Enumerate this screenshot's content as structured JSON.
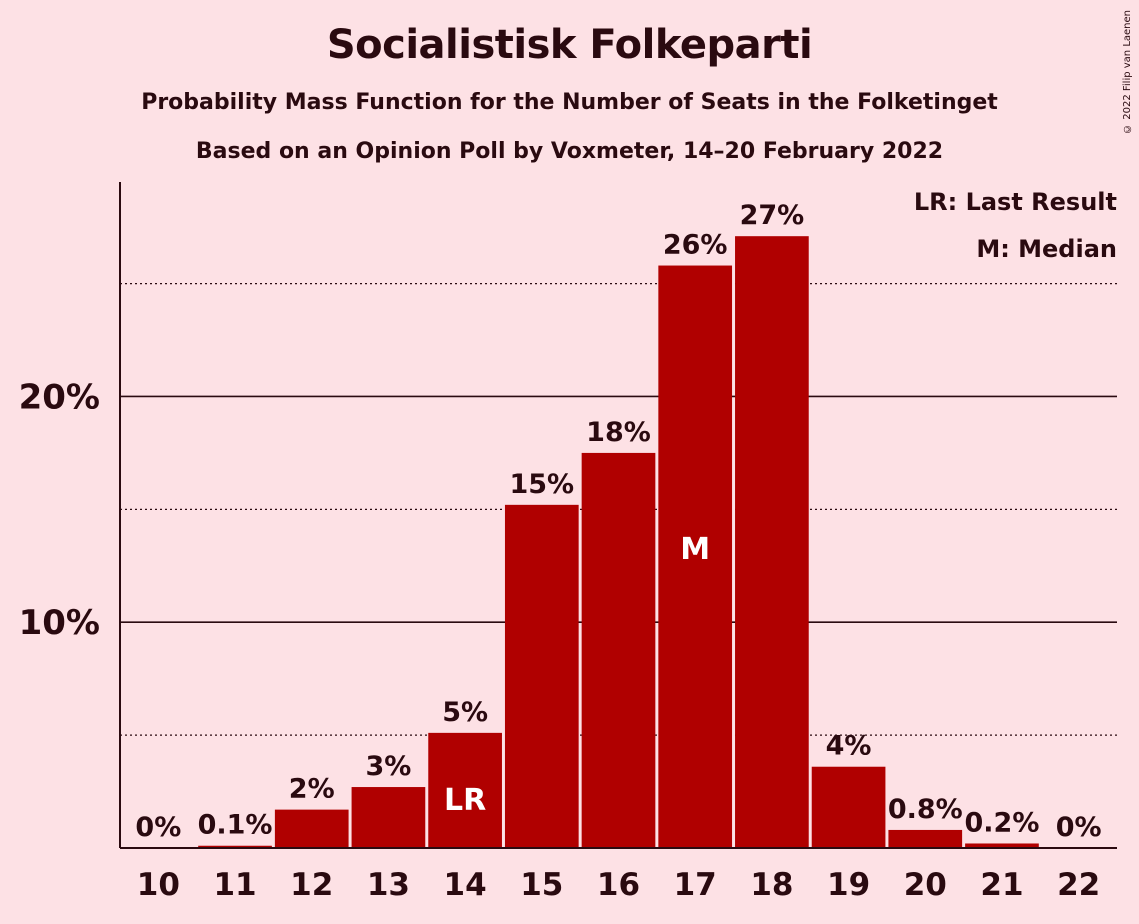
{
  "header": {
    "title": "Socialistisk Folkeparti",
    "subtitle_1": "Probability Mass Function for the Number of Seats in the Folketinget",
    "subtitle_2": "Based on an Opinion Poll by Voxmeter, 14–20 February 2022",
    "copyright": "© 2022 Filip van Laenen"
  },
  "legend": {
    "last_result": "LR: Last Result",
    "median": "M: Median"
  },
  "colors": {
    "background": "#FDE1E5",
    "bar": "#B00000",
    "text": "#2a0a10"
  },
  "chart_data": {
    "type": "bar",
    "title": "Socialistisk Folkeparti",
    "categories": [
      "10",
      "11",
      "12",
      "13",
      "14",
      "15",
      "16",
      "17",
      "18",
      "19",
      "20",
      "21",
      "22"
    ],
    "values": [
      0,
      0.1,
      1.7,
      2.7,
      5.1,
      15.2,
      17.5,
      25.8,
      27.1,
      3.6,
      0.8,
      0.2,
      0
    ],
    "data_labels": [
      "0%",
      "0.1%",
      "2%",
      "3%",
      "5%",
      "15%",
      "18%",
      "26%",
      "27%",
      "4%",
      "0.8%",
      "0.2%",
      "0%"
    ],
    "ylim": [
      0,
      29.5
    ],
    "yticks": [
      10,
      20
    ],
    "ytick_labels": [
      "10%",
      "20%"
    ],
    "minor_gridlines": [
      5,
      15,
      25
    ],
    "markers": [
      {
        "category": "14",
        "label": "LR"
      },
      {
        "category": "17",
        "label": "M"
      }
    ],
    "legend_position": "top-right"
  }
}
